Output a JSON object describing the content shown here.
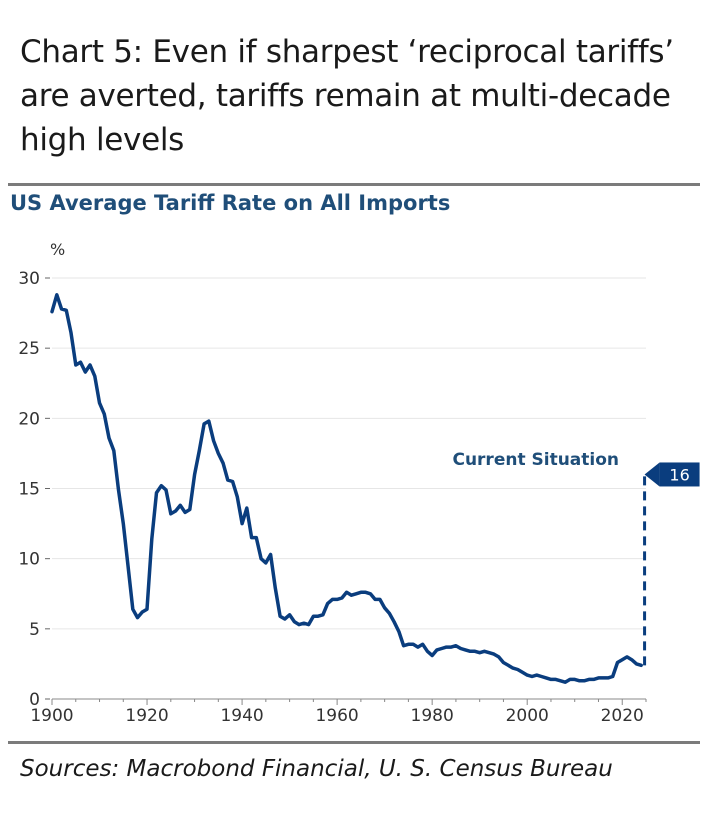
{
  "headline": "Chart 5: Even if sharpest ‘reciprocal tariffs’ are averted, tariffs remain at multi-decade high levels",
  "source": "Sources: Macrobond Financial, U. S. Census Bureau",
  "colors": {
    "series": "#0a3d7e",
    "callout": "#0a3d7e",
    "grid": "#e6e6e6",
    "text": "#333333",
    "subtitle": "#1f4e79"
  },
  "chart_data": {
    "type": "line",
    "title": "US Average Tariff Rate on All Imports",
    "ylabel": "%",
    "xlim": [
      1900,
      2025
    ],
    "ylim": [
      0,
      30
    ],
    "xticks": [
      1900,
      1920,
      1940,
      1960,
      1980,
      2000,
      2020
    ],
    "yticks": [
      0,
      5,
      10,
      15,
      20,
      25,
      30
    ],
    "grid": "horizontal",
    "series": [
      {
        "x": [
          1900,
          1901,
          1902,
          1903,
          1904,
          1905,
          1906,
          1907,
          1908,
          1909,
          1910,
          1911,
          1912,
          1913,
          1914,
          1915,
          1916,
          1917,
          1918,
          1919,
          1920,
          1921,
          1922,
          1923,
          1924,
          1925,
          1926,
          1927,
          1928,
          1929,
          1930,
          1931,
          1932,
          1933,
          1934,
          1935,
          1936,
          1937,
          1938,
          1939,
          1940,
          1941,
          1942,
          1943,
          1944,
          1945,
          1946,
          1947,
          1948,
          1949,
          1950,
          1951,
          1952,
          1953,
          1954,
          1955,
          1956,
          1957,
          1958,
          1959,
          1960,
          1961,
          1962,
          1963,
          1964,
          1965,
          1966,
          1967,
          1968,
          1969,
          1970,
          1971,
          1972,
          1973,
          1974,
          1975,
          1976,
          1977,
          1978,
          1979,
          1980,
          1981,
          1982,
          1983,
          1984,
          1985,
          1986,
          1987,
          1988,
          1989,
          1990,
          1991,
          1992,
          1993,
          1994,
          1995,
          1996,
          1997,
          1998,
          1999,
          2000,
          2001,
          2002,
          2003,
          2004,
          2005,
          2006,
          2007,
          2008,
          2009,
          2010,
          2011,
          2012,
          2013,
          2014,
          2015,
          2016,
          2017,
          2018,
          2019,
          2020,
          2021,
          2022,
          2023,
          2024
        ],
        "values": [
          27.6,
          28.8,
          27.8,
          27.7,
          26.1,
          23.8,
          24.0,
          23.3,
          23.8,
          23.0,
          21.1,
          20.3,
          18.6,
          17.7,
          14.9,
          12.5,
          9.5,
          6.4,
          5.8,
          6.2,
          6.4,
          11.4,
          14.7,
          15.2,
          14.9,
          13.2,
          13.4,
          13.8,
          13.3,
          13.5,
          16.0,
          17.7,
          19.6,
          19.8,
          18.4,
          17.5,
          16.8,
          15.6,
          15.5,
          14.4,
          12.5,
          13.6,
          11.5,
          11.5,
          10.0,
          9.7,
          10.3,
          7.9,
          5.9,
          5.7,
          6.0,
          5.5,
          5.3,
          5.4,
          5.3,
          5.9,
          5.9,
          6.0,
          6.8,
          7.1,
          7.1,
          7.2,
          7.6,
          7.4,
          7.5,
          7.6,
          7.6,
          7.5,
          7.1,
          7.1,
          6.5,
          6.1,
          5.5,
          4.8,
          3.8,
          3.9,
          3.9,
          3.7,
          3.9,
          3.4,
          3.1,
          3.5,
          3.6,
          3.7,
          3.7,
          3.8,
          3.6,
          3.5,
          3.4,
          3.4,
          3.3,
          3.4,
          3.3,
          3.2,
          3.0,
          2.6,
          2.4,
          2.2,
          2.1,
          1.9,
          1.7,
          1.6,
          1.7,
          1.6,
          1.5,
          1.4,
          1.4,
          1.3,
          1.2,
          1.4,
          1.4,
          1.3,
          1.3,
          1.4,
          1.4,
          1.5,
          1.5,
          1.5,
          1.6,
          2.6,
          2.8,
          3.0,
          2.8,
          2.5,
          2.4
        ]
      }
    ],
    "annotation": {
      "label": "Current Situation",
      "value": 16,
      "value_label": "16",
      "from": 2.4
    }
  }
}
